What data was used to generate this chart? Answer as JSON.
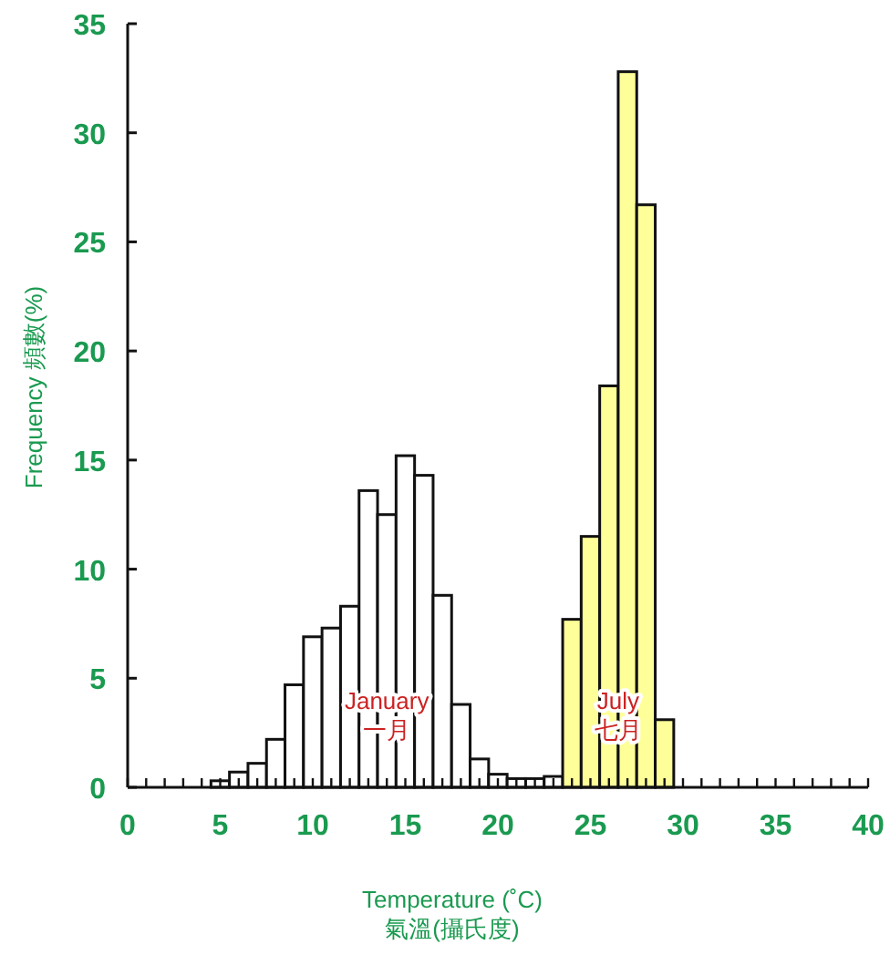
{
  "chart_data": {
    "type": "bar",
    "xlabel": "Temperature (˚C)\n氣溫(攝氏度)",
    "ylabel": "Frequency 頻數(%)",
    "xlim": [
      0,
      40
    ],
    "xticks": [
      0,
      5,
      10,
      15,
      20,
      25,
      30,
      35,
      40
    ],
    "ylim": [
      0,
      35
    ],
    "yticks": [
      0,
      5,
      10,
      15,
      20,
      25,
      30,
      35
    ],
    "series": [
      {
        "name": "January\n一月",
        "color": "#ffffff",
        "x": [
          5,
          6,
          7,
          8,
          9,
          10,
          11,
          12,
          13,
          14,
          15,
          16,
          17,
          18,
          19,
          20,
          21,
          22,
          23
        ],
        "values": [
          0.3,
          0.7,
          1.1,
          2.2,
          4.7,
          6.9,
          7.3,
          8.3,
          13.6,
          12.5,
          15.2,
          14.3,
          8.8,
          3.8,
          1.3,
          0.6,
          0.4,
          0.4,
          0.5
        ]
      },
      {
        "name": "July\n七月",
        "color": "#ffff99",
        "x": [
          24,
          25,
          26,
          27,
          28,
          29
        ],
        "values": [
          7.7,
          11.5,
          18.4,
          32.8,
          26.7,
          3.1
        ]
      }
    ]
  }
}
